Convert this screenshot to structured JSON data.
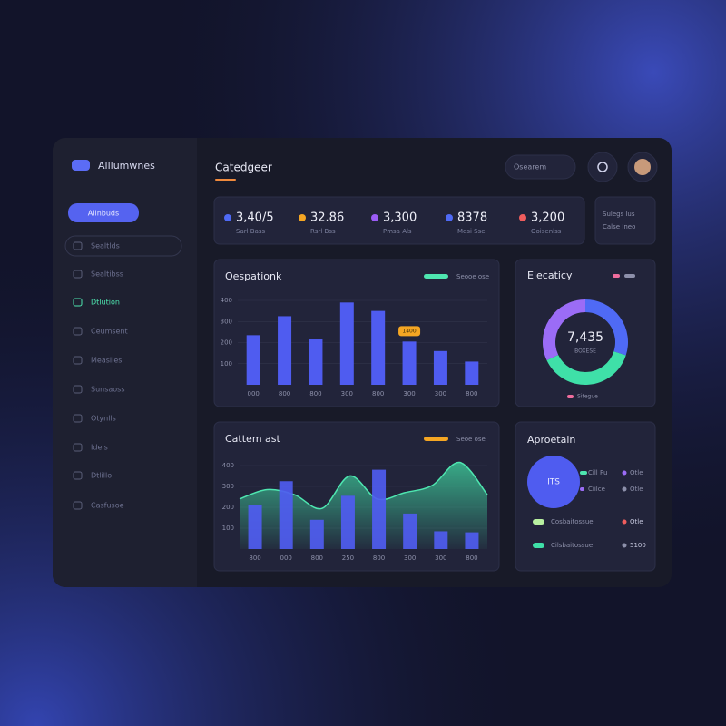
{
  "sidebar": {
    "brand": "Alllumwnes",
    "button": "Alinbuds",
    "nav": [
      "Sealtlds",
      "Sealtibss",
      "Dtlution",
      "Ceumsent",
      "Measlles",
      "Sunsaoss",
      "Otynlls",
      "Ideis",
      "Dtlillo",
      "Casfusoe"
    ]
  },
  "header": {
    "title": "Catedgeer",
    "search": "Osearem"
  },
  "stats": [
    {
      "value": "3,40/5",
      "label": "Sarl Bass",
      "color": "#4f6af5"
    },
    {
      "value": "32.86",
      "label": "Rsrl Bss",
      "color": "#f5a623"
    },
    {
      "value": "3,300",
      "label": "Pmsa Als",
      "color": "#9b5cf6"
    },
    {
      "value": "8378",
      "label": "Mesi Sse",
      "color": "#4f6af5"
    },
    {
      "value": "3,200",
      "label": "Ooisenlss",
      "color": "#ef5d5d"
    }
  ],
  "stats_side": [
    "Sulegs lus",
    "Calse Ineo"
  ],
  "bar_chart": {
    "title": "Oespationk",
    "legend": "Seooe ose",
    "legend_color": "#4ee6b0",
    "color": "#4f5cf0",
    "callout": "1400",
    "ylim": [
      0,
      400
    ],
    "yticks": [
      100,
      200,
      300,
      400
    ],
    "categories": [
      "000",
      "800",
      "800",
      "300",
      "800",
      "300",
      "300",
      "800"
    ],
    "values": [
      235,
      325,
      215,
      390,
      350,
      205,
      160,
      110
    ]
  },
  "area_chart": {
    "title": "Cattem ast",
    "legend": "Seoe ose",
    "legend_color": "#f5a623",
    "color": "#4f5cf0",
    "area_color": "#3fd6a0",
    "ylim": [
      0,
      500
    ],
    "yticks": [
      100,
      200,
      300,
      400
    ],
    "categories": [
      "800",
      "000",
      "800",
      "250",
      "800",
      "300",
      "300",
      "800"
    ],
    "values": [
      210,
      325,
      140,
      255,
      380,
      170,
      85,
      80
    ],
    "area_values": [
      240,
      285,
      260,
      195,
      350,
      240,
      270,
      305,
      415,
      260
    ]
  },
  "donut": {
    "title": "Elecaticy",
    "center_value": "7,435",
    "center_label": "BOXESE",
    "legend": "Sitegue",
    "values": [
      30,
      38,
      32
    ],
    "colors": [
      "#4f6af5",
      "#3fe0a8",
      "#9b6cf6"
    ]
  },
  "summary": {
    "title": "Aproetain",
    "badge": "ITS",
    "legend": [
      {
        "label": "Cill Pu",
        "value": "Otle"
      },
      {
        "label": "Ciilce",
        "value": "Otle"
      }
    ],
    "rows": [
      {
        "label": "Cosbaitossue",
        "value": "Otle"
      },
      {
        "label": "Cilsbaitossue",
        "value": "5100"
      }
    ]
  }
}
